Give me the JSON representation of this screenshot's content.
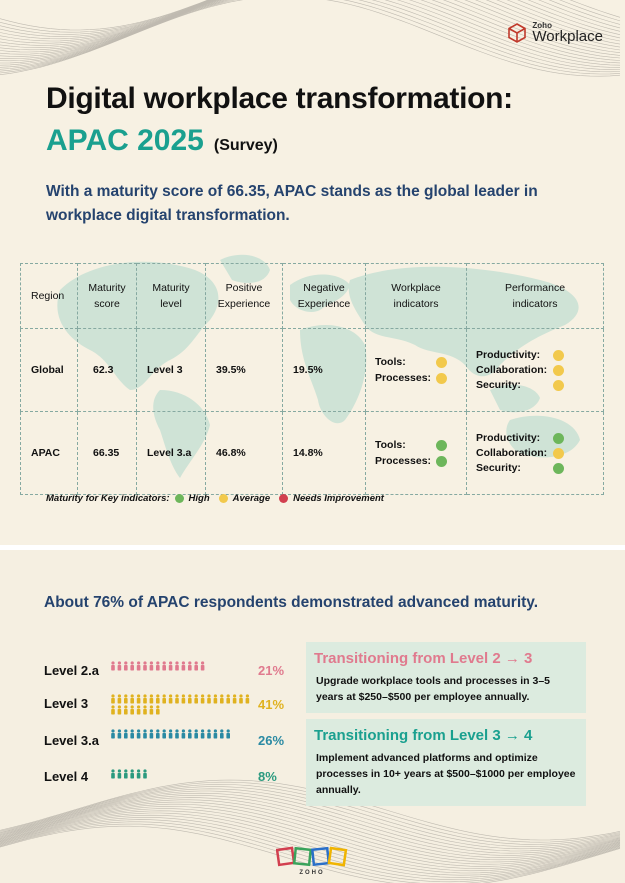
{
  "header": {
    "logo_brand": "Zoho",
    "logo_product": "Workplace",
    "title_line1": "Digital workplace transformation:",
    "title_highlight": "APAC 2025",
    "title_suffix": "(Survey)",
    "subtitle": "With a maturity score of 66.35, APAC stands as the global leader in workplace digital transformation."
  },
  "colors": {
    "teal": "#1aa08f",
    "navy": "#25436e",
    "high": "#6db65b",
    "average": "#f2c94c",
    "needs_improvement": "#d23f4f",
    "pink": "#e07a8e",
    "gold": "#e0b21f",
    "blue": "#2a8aa3",
    "green": "#2b9a7f"
  },
  "table": {
    "headers": [
      "Region",
      "Maturity score",
      "Maturity level",
      "Positive Experience",
      "Negative Experience",
      "Workplace indicators",
      "Performance indicators"
    ],
    "rows": [
      {
        "region": "Global",
        "score": "62.3",
        "level": "Level 3",
        "positive": "39.5%",
        "negative": "19.5%",
        "workplace": [
          {
            "label": "Tools:",
            "status": "average"
          },
          {
            "label": "Processes:",
            "status": "average"
          }
        ],
        "performance": [
          {
            "label": "Productivity:",
            "status": "average"
          },
          {
            "label": "Collaboration:",
            "status": "average"
          },
          {
            "label": "Security:",
            "status": "average"
          }
        ]
      },
      {
        "region": "APAC",
        "score": "66.35",
        "level": "Level 3.a",
        "positive": "46.8%",
        "negative": "14.8%",
        "workplace": [
          {
            "label": "Tools:",
            "status": "high"
          },
          {
            "label": "Processes:",
            "status": "high"
          }
        ],
        "performance": [
          {
            "label": "Productivity:",
            "status": "high"
          },
          {
            "label": "Collaboration:",
            "status": "average"
          },
          {
            "label": "Security:",
            "status": "high"
          }
        ]
      }
    ]
  },
  "legend": {
    "prefix": "Maturity for Key indicators:",
    "high": "High",
    "average": "Average",
    "needs": "Needs Improvement"
  },
  "advanced": {
    "heading": "About 76% of APAC respondents demonstrated advanced maturity.",
    "levels": [
      {
        "label": "Level 2.a",
        "percent": "21%",
        "value": 21,
        "color": "pink"
      },
      {
        "label": "Level 3",
        "percent": "41%",
        "value": 41,
        "color": "gold"
      },
      {
        "label": "Level 3.a",
        "percent": "26%",
        "value": 26,
        "color": "blue"
      },
      {
        "label": "Level 4",
        "percent": "8%",
        "value": 8,
        "color": "green"
      }
    ]
  },
  "transitions": [
    {
      "title": "Transitioning from Level 2 → 3",
      "text": "Upgrade workplace tools and processes in 3–5 years at $250–$500 per employee annually.",
      "color": "pink"
    },
    {
      "title": "Transitioning from  Level 3 → 4",
      "text": "Implement advanced platforms and optimize processes in 10+ years at $500–$1000 per employee annually.",
      "color": "teal"
    }
  ],
  "footer": {
    "brand": "ZOHO"
  }
}
